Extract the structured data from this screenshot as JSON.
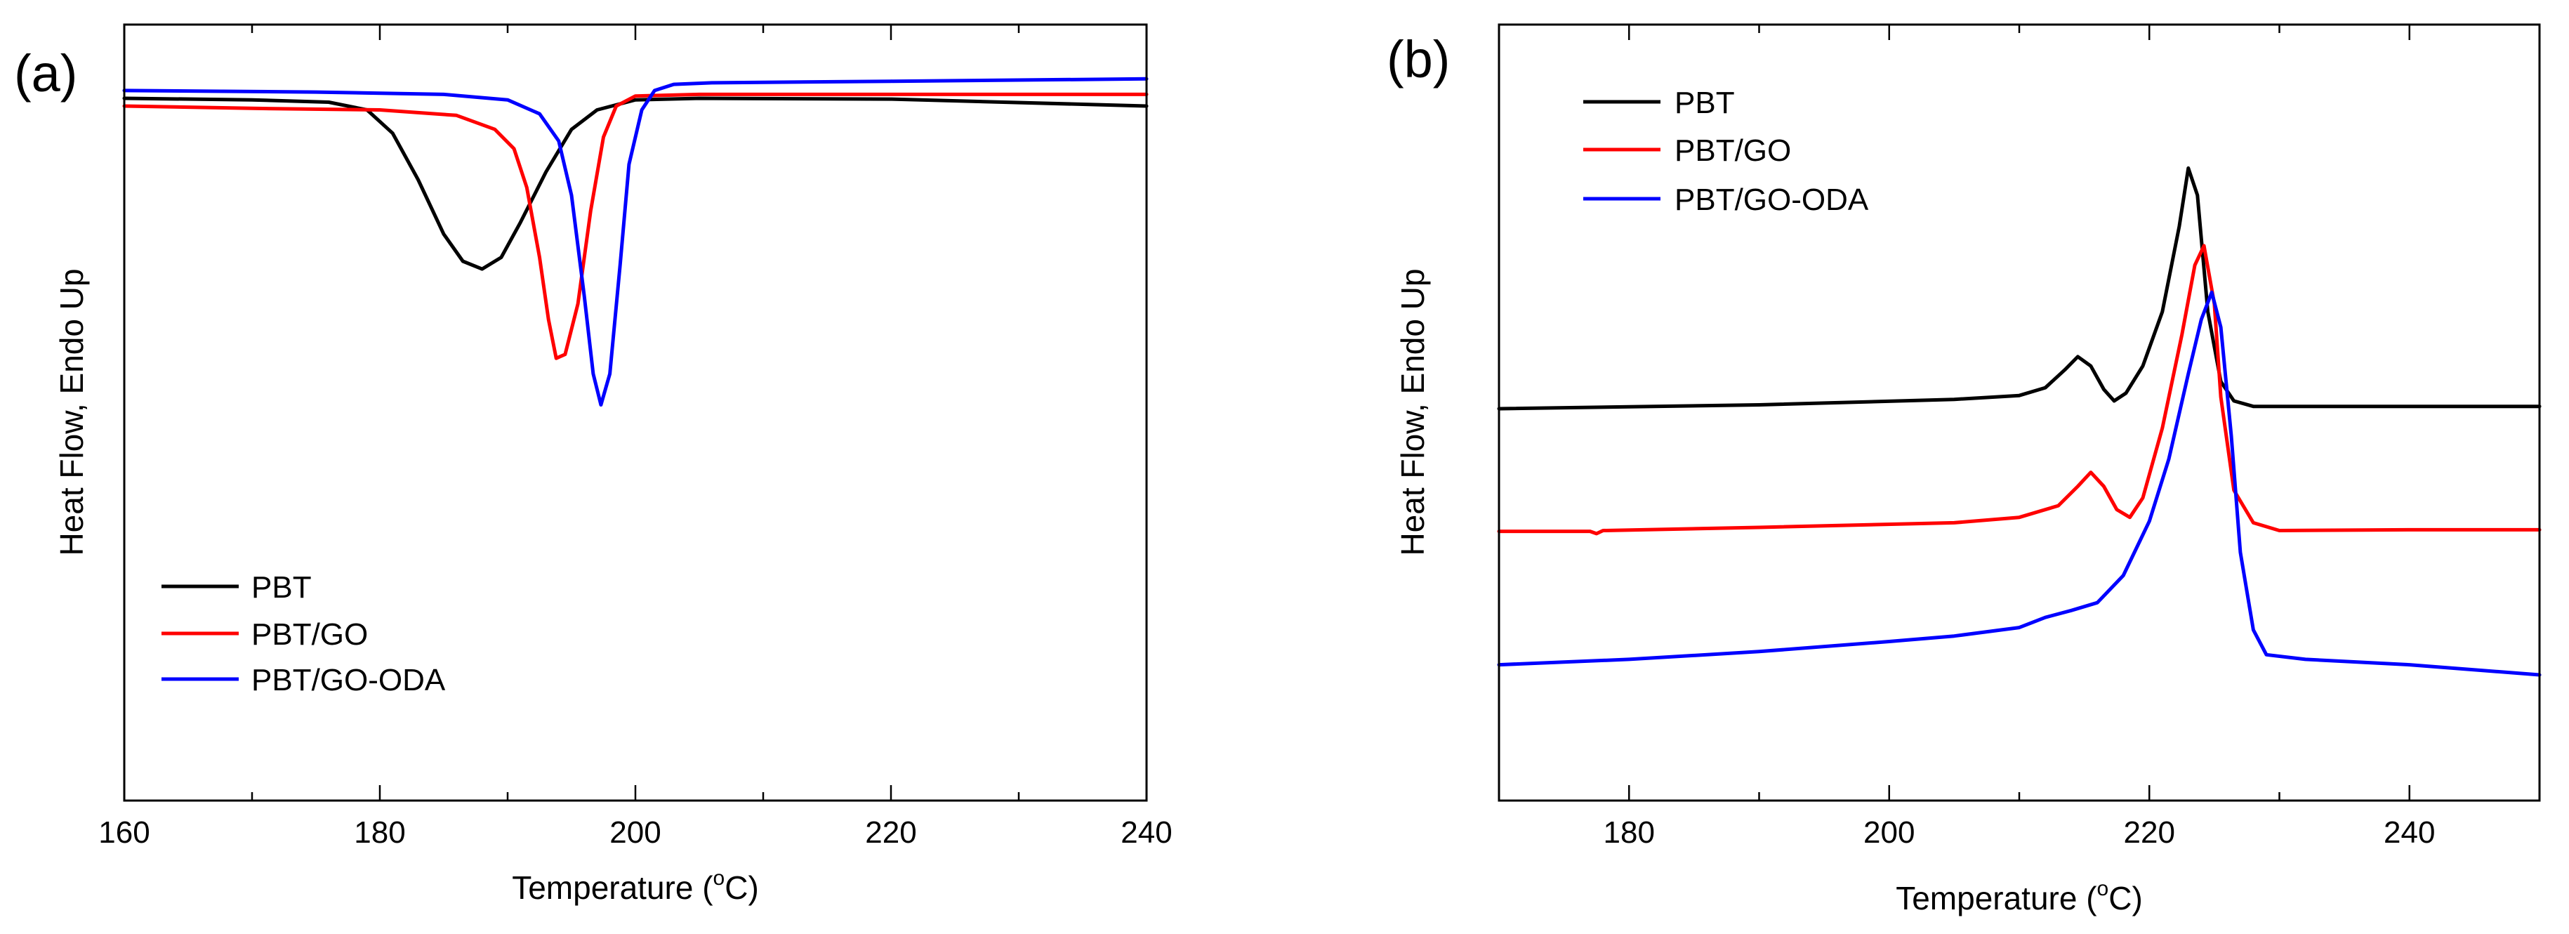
{
  "colors": {
    "PBT": "#000000",
    "PBT/GO": "#ff0000",
    "PBT/GO-ODA": "#0000ff"
  },
  "chart_data": [
    {
      "panel_label": "(a)",
      "type": "line",
      "title": "",
      "xlabel": "Temperature (",
      "xlabel_unit_sup": "o",
      "xlabel_unit_rest": "C)",
      "ylabel": "Heat Flow, Endo Up",
      "xlim": [
        160,
        240
      ],
      "ylim": [
        0,
        100
      ],
      "ytick_labels_shown": false,
      "xticks": [
        160,
        180,
        200,
        220,
        240
      ],
      "xtick_labels": [
        "160",
        "180",
        "200",
        "220",
        "240"
      ],
      "legend": {
        "position": "lower-left",
        "entries": [
          "PBT",
          "PBT/GO",
          "PBT/GO-ODA"
        ]
      },
      "series": [
        {
          "name": "PBT",
          "x": [
            160,
            170,
            176,
            179,
            181,
            183,
            185,
            186.5,
            188,
            189.5,
            191,
            193,
            195,
            197,
            200,
            205,
            220,
            240
          ],
          "y": [
            90.5,
            90.3,
            90,
            89,
            86,
            80,
            73,
            69.5,
            68.5,
            70,
            74.5,
            81,
            86.5,
            89,
            90.3,
            90.5,
            90.4,
            89.5
          ]
        },
        {
          "name": "PBT/GO",
          "x": [
            160,
            170,
            180,
            186,
            189,
            190.5,
            191.5,
            192.5,
            193.2,
            193.8,
            194.5,
            195.5,
            196.5,
            197.5,
            198.5,
            200,
            205,
            220,
            240
          ],
          "y": [
            89.5,
            89.2,
            89,
            88.3,
            86.5,
            84,
            79,
            70,
            62,
            57,
            57.5,
            64,
            76,
            85.5,
            89.5,
            90.8,
            91,
            91,
            91
          ]
        },
        {
          "name": "PBT/GO-ODA",
          "x": [
            160,
            175,
            185,
            190,
            192.5,
            194,
            195,
            196,
            196.7,
            197.3,
            198,
            198.8,
            199.5,
            200.5,
            201.5,
            203,
            206,
            220,
            240
          ],
          "y": [
            91.5,
            91.3,
            91,
            90.3,
            88.5,
            85,
            78,
            65,
            55,
            51,
            55,
            69,
            82,
            89,
            91.5,
            92.3,
            92.5,
            92.7,
            93
          ]
        }
      ]
    },
    {
      "panel_label": "(b)",
      "type": "line",
      "title": "",
      "xlabel": "Temperature (",
      "xlabel_unit_sup": "o",
      "xlabel_unit_rest": "C)",
      "ylabel": "Heat Flow, Endo Up",
      "xlim": [
        170,
        250
      ],
      "ylim": [
        0,
        100
      ],
      "ytick_labels_shown": false,
      "xticks": [
        180,
        200,
        220,
        240
      ],
      "xtick_labels": [
        "180",
        "200",
        "220",
        "240"
      ],
      "legend": {
        "position": "top-left",
        "entries": [
          "PBT",
          "PBT/GO",
          "PBT/GO-ODA"
        ]
      },
      "series": [
        {
          "name": "PBT",
          "x": [
            170,
            190,
            205,
            210,
            212,
            213.5,
            214.5,
            215.5,
            216.5,
            217.3,
            218.2,
            219.5,
            221,
            222.3,
            223,
            223.7,
            224.5,
            225.5,
            226.5,
            228,
            230,
            240,
            250
          ],
          "y": [
            50.5,
            51,
            51.7,
            52.2,
            53.2,
            55.5,
            57.2,
            56,
            53,
            51.5,
            52.5,
            56,
            63,
            74,
            81.5,
            78,
            63,
            54,
            51.5,
            50.8,
            50.8,
            50.8,
            50.8
          ]
        },
        {
          "name": "PBT/GO",
          "x": [
            170,
            177,
            177.5,
            178,
            190,
            205,
            210,
            213,
            214.5,
            215.5,
            216.5,
            217.5,
            218.5,
            219.5,
            221,
            222.5,
            223.5,
            224.2,
            225,
            225.5,
            226.5,
            228,
            230,
            240,
            250
          ],
          "y": [
            34.7,
            34.7,
            34.4,
            34.8,
            35.2,
            35.8,
            36.5,
            38,
            40.5,
            42.3,
            40.5,
            37.5,
            36.5,
            39,
            48,
            60,
            69,
            71.5,
            64,
            52,
            40,
            35.8,
            34.8,
            34.9,
            34.9
          ]
        },
        {
          "name": "PBT/GO-ODA",
          "x": [
            170,
            180,
            190,
            200,
            205,
            210,
            212,
            214,
            216,
            218,
            220,
            221.5,
            223,
            224,
            224.8,
            225.5,
            226.3,
            227,
            228,
            229,
            232,
            240,
            250
          ],
          "y": [
            17.5,
            18.2,
            19.2,
            20.5,
            21.2,
            22.3,
            23.6,
            24.5,
            25.5,
            29,
            36,
            44,
            55,
            62,
            65.5,
            61,
            47,
            32,
            22,
            18.8,
            18.2,
            17.5,
            16.2
          ]
        }
      ]
    }
  ]
}
